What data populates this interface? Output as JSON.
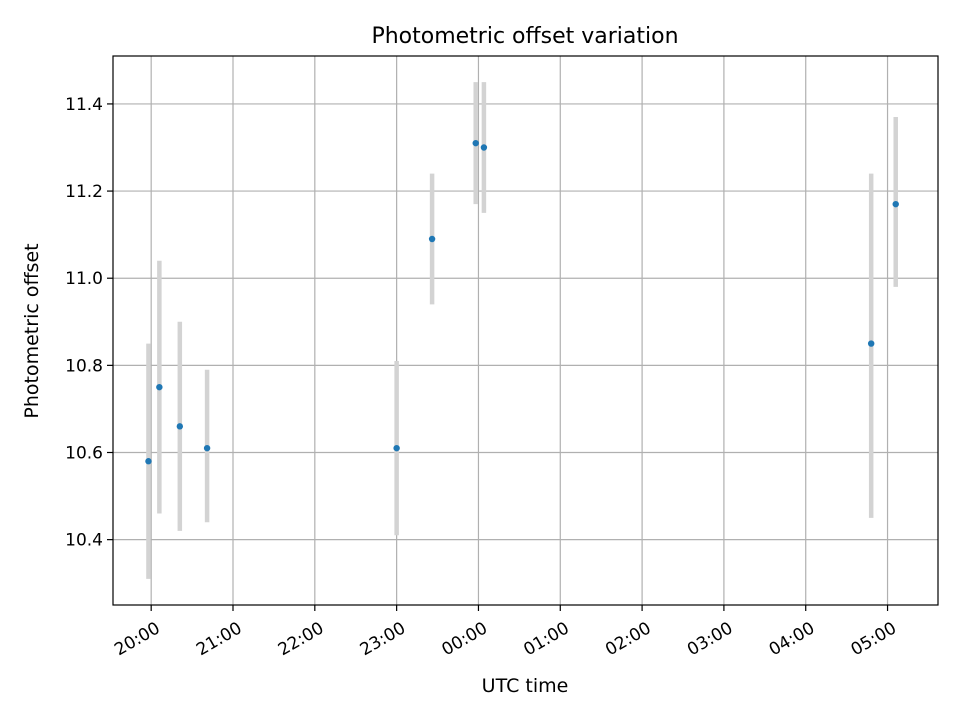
{
  "chart_data": {
    "type": "scatter",
    "title": "Photometric offset variation",
    "xlabel": "UTC time",
    "ylabel": "Photometric offset",
    "grid": true,
    "legend": "none",
    "xlim": [
      "19:32",
      "05:37"
    ],
    "ylim": [
      10.25,
      11.51
    ],
    "x_ticks": [
      "20:00",
      "21:00",
      "22:00",
      "23:00",
      "00:00",
      "01:00",
      "02:00",
      "03:00",
      "04:00",
      "05:00"
    ],
    "y_ticks": [
      "10.4",
      "10.6",
      "10.8",
      "11.0",
      "11.2",
      "11.4"
    ],
    "series": [
      {
        "points": [
          {
            "x": "19:58",
            "y": 10.58,
            "y_lower": 10.31,
            "y_upper": 10.85
          },
          {
            "x": "20:06",
            "y": 10.75,
            "y_lower": 10.46,
            "y_upper": 11.04
          },
          {
            "x": "20:21",
            "y": 10.66,
            "y_lower": 10.42,
            "y_upper": 10.9
          },
          {
            "x": "20:41",
            "y": 10.61,
            "y_lower": 10.44,
            "y_upper": 10.79
          },
          {
            "x": "23:00",
            "y": 10.61,
            "y_lower": 10.41,
            "y_upper": 10.81
          },
          {
            "x": "23:26",
            "y": 11.09,
            "y_lower": 10.94,
            "y_upper": 11.24
          },
          {
            "x": "23:58",
            "y": 11.31,
            "y_lower": 11.17,
            "y_upper": 11.45
          },
          {
            "x": "00:04",
            "y": 11.3,
            "y_lower": 11.15,
            "y_upper": 11.45
          },
          {
            "x": "04:48",
            "y": 10.85,
            "y_lower": 10.45,
            "y_upper": 11.24
          },
          {
            "x": "05:06",
            "y": 11.17,
            "y_lower": 10.98,
            "y_upper": 11.37
          }
        ]
      }
    ],
    "colors": {
      "marker": "#1f77b4",
      "errorbar": "#d3d3d3",
      "grid": "#b0b0b0",
      "axes": "#000000"
    }
  }
}
